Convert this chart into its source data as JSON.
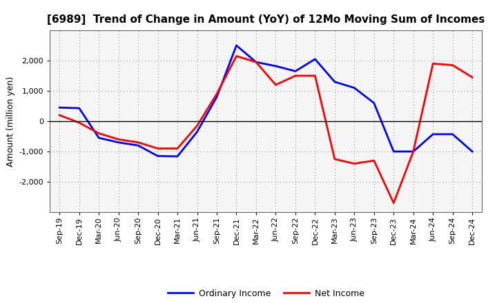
{
  "title": "[6989]  Trend of Change in Amount (YoY) of 12Mo Moving Sum of Incomes",
  "ylabel": "Amount (million yen)",
  "x_labels": [
    "Sep-19",
    "Dec-19",
    "Mar-20",
    "Jun-20",
    "Sep-20",
    "Dec-20",
    "Mar-21",
    "Jun-21",
    "Sep-21",
    "Dec-21",
    "Mar-22",
    "Jun-22",
    "Sep-22",
    "Dec-22",
    "Mar-23",
    "Jun-23",
    "Sep-23",
    "Dec-23",
    "Mar-24",
    "Jun-24",
    "Sep-24",
    "Dec-24"
  ],
  "ordinary_income": [
    450,
    430,
    -550,
    -700,
    -800,
    -1150,
    -1160,
    -350,
    800,
    2500,
    1950,
    1820,
    1650,
    2050,
    1300,
    1100,
    600,
    -1000,
    -1000,
    -430,
    -430,
    -1000
  ],
  "net_income": [
    200,
    -50,
    -400,
    -600,
    -700,
    -900,
    -900,
    -150,
    900,
    2150,
    1950,
    1200,
    1500,
    1500,
    -1250,
    -1400,
    -1300,
    -2700,
    -1000,
    1900,
    1850,
    1450
  ],
  "ordinary_color": "#0000ff",
  "net_color": "#ff0000",
  "background_color": "#ffffff",
  "plot_bg_color": "#f5f5f5",
  "grid_color": "#aaaaaa",
  "ylim": [
    -3000,
    3000
  ],
  "yticks": [
    -2000,
    -1000,
    0,
    1000,
    2000
  ],
  "legend_labels": [
    "Ordinary Income",
    "Net Income"
  ],
  "title_fontsize": 11,
  "axis_fontsize": 8,
  "ylabel_fontsize": 9
}
